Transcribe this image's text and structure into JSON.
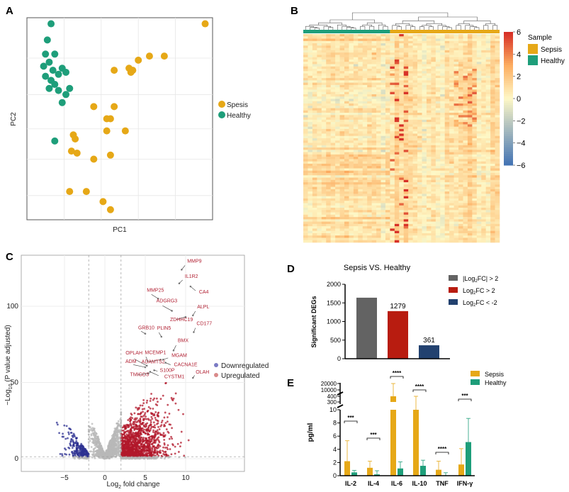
{
  "panels": {
    "a": "A",
    "b": "B",
    "c": "C",
    "d": "D",
    "e": "E"
  },
  "chart_data": [
    {
      "panel": "A",
      "type": "scatter",
      "xlabel": "PC1",
      "ylabel": "PC2",
      "xlim": [
        0,
        100
      ],
      "ylim": [
        0,
        100
      ],
      "grid": true,
      "legend_position": "right",
      "series": [
        {
          "name": "Spesis",
          "color": "#E6A817",
          "points": [
            [
              96,
              97
            ],
            [
              66,
              81
            ],
            [
              74,
              81
            ],
            [
              60,
              79
            ],
            [
              55,
              75
            ],
            [
              57,
              74
            ],
            [
              47,
              74
            ],
            [
              56,
              73
            ],
            [
              36,
              56
            ],
            [
              47,
              56
            ],
            [
              45,
              50
            ],
            [
              43,
              50
            ],
            [
              53,
              44
            ],
            [
              43,
              44
            ],
            [
              25,
              42
            ],
            [
              26,
              40
            ],
            [
              24,
              34
            ],
            [
              27,
              33
            ],
            [
              36,
              30
            ],
            [
              45,
              32
            ],
            [
              23,
              14
            ],
            [
              32,
              14
            ],
            [
              41,
              9
            ],
            [
              45,
              5
            ]
          ]
        },
        {
          "name": "Healthy",
          "color": "#1E9E7A",
          "points": [
            [
              13,
              97
            ],
            [
              11,
              89
            ],
            [
              10,
              82
            ],
            [
              15,
              82
            ],
            [
              12,
              78
            ],
            [
              9,
              76
            ],
            [
              19,
              75
            ],
            [
              14,
              74
            ],
            [
              17,
              72
            ],
            [
              10,
              71
            ],
            [
              21,
              73
            ],
            [
              13,
              69
            ],
            [
              15,
              67
            ],
            [
              12,
              65
            ],
            [
              17,
              64
            ],
            [
              23,
              65
            ],
            [
              21,
              62
            ],
            [
              19,
              58
            ],
            [
              15,
              39
            ]
          ]
        }
      ]
    },
    {
      "panel": "B",
      "type": "heatmap",
      "colorbar": {
        "ticks": [
          6,
          4,
          2,
          0,
          -2,
          -4,
          -6
        ],
        "range": [
          -6,
          6
        ],
        "low_color": "#4575B4",
        "mid_color": "#FEF8C6",
        "high_color": "#D73027"
      },
      "annotation_legend": {
        "title": "Sample",
        "entries": [
          {
            "name": "Sepsis",
            "color": "#E6A817"
          },
          {
            "name": "Healthy",
            "color": "#1E9E7A"
          }
        ]
      },
      "column_groups": [
        {
          "name": "Healthy",
          "count": 19
        },
        {
          "name": "Sepsis",
          "count": 24
        }
      ],
      "dendrogram": true
    },
    {
      "panel": "C",
      "type": "scatter",
      "xlabel": "Log2 fold change",
      "ylabel": "−Log10 (P value adjusted)",
      "xticks": [
        -5,
        0,
        5,
        10
      ],
      "yticks": [
        0,
        50,
        100
      ],
      "xlim": [
        -8,
        17.5
      ],
      "ylim": [
        -8,
        135
      ],
      "thresholds": {
        "log2fc": [
          -2,
          2
        ],
        "neg_log10_p": 1.3
      },
      "legend_position": "right",
      "legend": [
        {
          "name": "Downregulated",
          "color": "#7B7BC4"
        },
        {
          "name": "Upregulated",
          "color": "#D98A8A"
        }
      ],
      "point_colors": {
        "down": "#2E3192",
        "up": "#B2182B",
        "ns": "#B8B8B8"
      },
      "labeled_genes": [
        {
          "gene": "MMP9",
          "x": 9.5,
          "y": 124
        },
        {
          "gene": "IL1R2",
          "x": 9.2,
          "y": 115
        },
        {
          "gene": "CA4",
          "x": 10.6,
          "y": 113
        },
        {
          "gene": "MMP25",
          "x": 6.6,
          "y": 105
        },
        {
          "gene": "ADGRG3",
          "x": 8.3,
          "y": 97
        },
        {
          "gene": "ALPL",
          "x": 10.9,
          "y": 94
        },
        {
          "gene": "ZDHHC19",
          "x": 10.0,
          "y": 93
        },
        {
          "gene": "CD177",
          "x": 11.0,
          "y": 83
        },
        {
          "gene": "GRB10",
          "x": 5.0,
          "y": 82
        },
        {
          "gene": "PLIN5",
          "x": 7.0,
          "y": 80
        },
        {
          "gene": "BMX",
          "x": 8.5,
          "y": 71
        },
        {
          "gene": "OPLAH",
          "x": 5.2,
          "y": 61
        },
        {
          "gene": "MCEMP1",
          "x": 5.3,
          "y": 64
        },
        {
          "gene": "ADM",
          "x": 5.0,
          "y": 60
        },
        {
          "gene": "ADAMTS2",
          "x": 6.9,
          "y": 65
        },
        {
          "gene": "MGAM",
          "x": 7.2,
          "y": 65
        },
        {
          "gene": "CACNA1E",
          "x": 7.5,
          "y": 63
        },
        {
          "gene": "TMIGD3",
          "x": 5.4,
          "y": 56
        },
        {
          "gene": "S100P",
          "x": 6.1,
          "y": 58
        },
        {
          "gene": "CYSTM1",
          "x": 5.6,
          "y": 57
        },
        {
          "gene": "OLAH",
          "x": 10.9,
          "y": 53
        }
      ]
    },
    {
      "panel": "D",
      "type": "bar",
      "title": "Sepsis VS. Healthy",
      "ylabel": "Significant DEGs",
      "ylim": [
        0,
        2000
      ],
      "yticks": [
        0,
        500,
        1000,
        1500,
        2000
      ],
      "categories": [
        "|Log2FC| > 2",
        "Log2FC > 2",
        "Log2FC < -2"
      ],
      "values": [
        1640,
        1279,
        361
      ],
      "data_labels": [
        "",
        "1279",
        "361"
      ],
      "colors": [
        "#636363",
        "#B81C10",
        "#22416F"
      ],
      "legend_position": "right"
    },
    {
      "panel": "E",
      "type": "bar",
      "ylabel": "pg/ml",
      "yticks_lower": [
        0,
        2,
        4,
        6,
        8,
        10
      ],
      "yticks_upper": [
        "300",
        "400",
        "10000",
        "20000"
      ],
      "axis_break": true,
      "categories": [
        "IL-2",
        "IL-4",
        "IL-6",
        "IL-10",
        "TNF",
        "IFN-γ"
      ],
      "series": [
        {
          "name": "Sepsis",
          "color": "#E6A817",
          "values": [
            2.2,
            1.2,
            400,
            300,
            0.9,
            1.7
          ],
          "error_upper": [
            5.3,
            2.2,
            20000,
            400,
            2.2,
            4.1
          ]
        },
        {
          "name": "Healthy",
          "color": "#1E9E7A",
          "values": [
            0.5,
            0.2,
            1.1,
            1.5,
            0.05,
            5.1
          ],
          "error_upper": [
            0.8,
            0.75,
            2.1,
            2.35,
            0.45,
            10.3
          ]
        }
      ],
      "significance": [
        "***",
        "***",
        "****",
        "****",
        "****",
        "***"
      ],
      "legend_position": "top-right"
    }
  ]
}
